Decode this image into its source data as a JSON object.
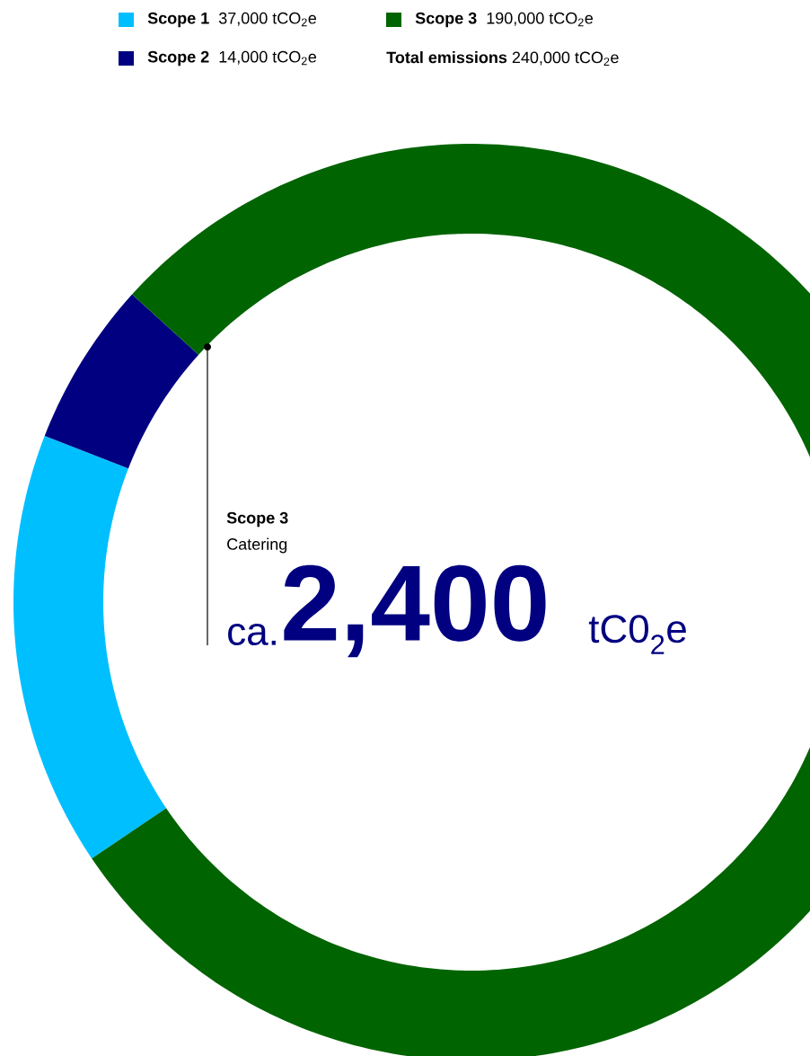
{
  "chart_data": {
    "type": "donut",
    "categories": [
      "Scope 1",
      "Scope 2",
      "Scope 3"
    ],
    "values": [
      37000,
      14000,
      190000
    ],
    "value_labels": [
      "37,000 tCO$_{2}$e",
      "14,000 tCO$_{2}$e",
      "190,000 tCO$_{2}$e"
    ],
    "colors": [
      "#00bfff",
      "#000080",
      "#006400"
    ],
    "legend": "top",
    "annotations": [
      "**Total emissions** 240,000 tCO$_{2}$e",
      "Scope 3",
      "Catering",
      "ca.",
      "2,400",
      "tC0$_{2}$e"
    ]
  }
}
